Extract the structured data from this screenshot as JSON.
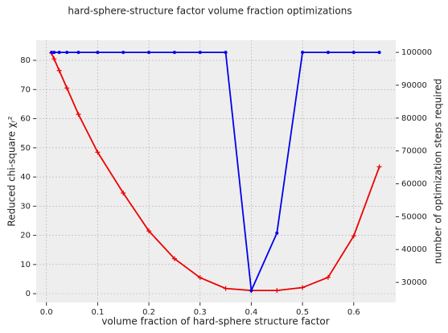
{
  "chart_data": {
    "type": "line",
    "title": "hard-sphere-structure factor volume fraction optimizations",
    "xlabel": "volume fraction of hard-sphere structure factor",
    "ylabel": "Reduced chi-square χᵣ²",
    "y2label": "number of optimization steps required",
    "x": [
      0.01,
      0.015,
      0.025,
      0.04,
      0.0625,
      0.1,
      0.15,
      0.2,
      0.25,
      0.3,
      0.35,
      0.4,
      0.45,
      0.5,
      0.55,
      0.6,
      0.65
    ],
    "series": [
      {
        "name": "Reduced chi-square",
        "color": "#ee0000",
        "marker": "+",
        "values": [
          82.5,
          80.5,
          76.5,
          70.5,
          61.5,
          48.5,
          34.5,
          21.5,
          12,
          5.5,
          1.8,
          1.1,
          1.1,
          2.1,
          5.6,
          19.8,
          43.5
        ]
      },
      {
        "name": "number of optimization steps required",
        "color": "#0000ee",
        "marker": ".",
        "axis": "y2",
        "values": [
          100000,
          100000,
          100000,
          100000,
          100000,
          100000,
          100000,
          100000,
          100000,
          100000,
          100000,
          27500,
          45000,
          100000,
          100000,
          100000,
          100000
        ]
      }
    ],
    "xlim": [
      -0.02,
      0.682
    ],
    "xticks": [
      {
        "value": 0,
        "label": "0.0"
      },
      0.1,
      0.2,
      0.3,
      0.4,
      0.5,
      0.6
    ],
    "ylim": [
      -3.0,
      86.9
    ],
    "yticks": [
      0,
      10,
      20,
      30,
      40,
      50,
      60,
      70,
      80
    ],
    "y2lim": [
      23900,
      103700
    ],
    "y2ticks": [
      30000,
      40000,
      50000,
      60000,
      70000,
      80000,
      90000,
      100000
    ],
    "grid": true
  }
}
